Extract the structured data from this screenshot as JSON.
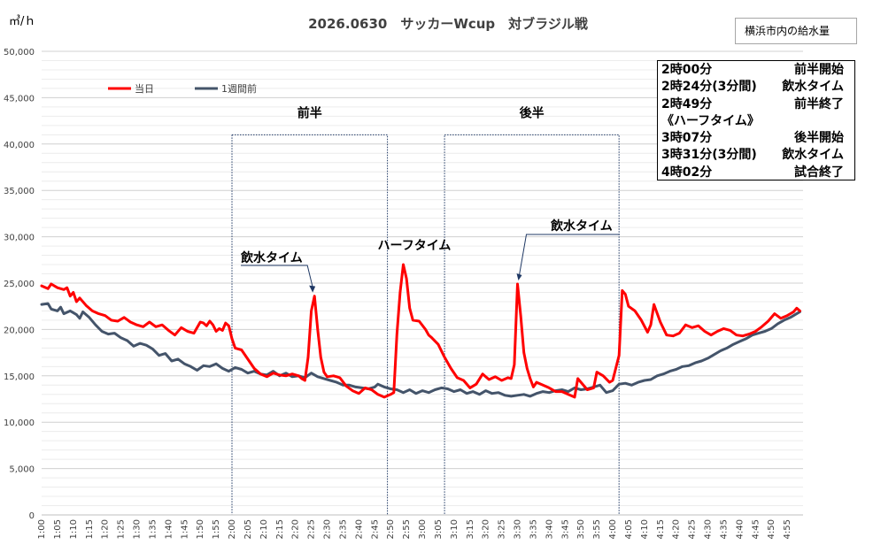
{
  "chart_data": {
    "type": "line",
    "title": "2026.0630　サッカーWcup　対ブラジル戦",
    "ylabel": "㎥/ｈ",
    "ylim": [
      0,
      50000
    ],
    "yticks": [
      "0",
      "5,000",
      "10,000",
      "15,000",
      "20,000",
      "25,000",
      "30,000",
      "35,000",
      "40,000",
      "45,000",
      "50,000"
    ],
    "xticks": [
      "1:00",
      "1:05",
      "1:10",
      "1:15",
      "1:20",
      "1:25",
      "1:30",
      "1:35",
      "1:40",
      "1:45",
      "1:50",
      "1:55",
      "2:00",
      "2:05",
      "2:10",
      "2:15",
      "2:20",
      "2:25",
      "2:30",
      "2:35",
      "2:40",
      "2:45",
      "2:50",
      "2:55",
      "3:00",
      "3:05",
      "3:10",
      "3:15",
      "3:20",
      "3:25",
      "3:30",
      "3:35",
      "3:40",
      "3:45",
      "3:50",
      "3:55",
      "4:00",
      "4:05",
      "4:10",
      "4:15",
      "4:20",
      "4:25",
      "4:30",
      "4:35",
      "4:40",
      "4:45",
      "4:50",
      "4:55"
    ],
    "x_start": "1:00",
    "x_end": "4:59",
    "series": [
      {
        "name": "当日",
        "color": "#ff0000",
        "points": [
          [
            "1:00",
            24700
          ],
          [
            "1:02",
            24400
          ],
          [
            "1:03",
            24900
          ],
          [
            "1:05",
            24500
          ],
          [
            "1:07",
            24300
          ],
          [
            "1:08",
            24500
          ],
          [
            "1:09",
            23600
          ],
          [
            "1:10",
            24000
          ],
          [
            "1:11",
            23000
          ],
          [
            "1:12",
            23400
          ],
          [
            "1:14",
            22600
          ],
          [
            "1:16",
            22000
          ],
          [
            "1:18",
            21700
          ],
          [
            "1:20",
            21500
          ],
          [
            "1:22",
            21000
          ],
          [
            "1:24",
            20900
          ],
          [
            "1:26",
            21300
          ],
          [
            "1:28",
            20800
          ],
          [
            "1:30",
            20500
          ],
          [
            "1:32",
            20300
          ],
          [
            "1:34",
            20800
          ],
          [
            "1:36",
            20300
          ],
          [
            "1:38",
            20500
          ],
          [
            "1:40",
            19900
          ],
          [
            "1:42",
            19400
          ],
          [
            "1:44",
            20200
          ],
          [
            "1:46",
            19800
          ],
          [
            "1:48",
            19600
          ],
          [
            "1:50",
            20800
          ],
          [
            "1:51",
            20700
          ],
          [
            "1:52",
            20400
          ],
          [
            "1:53",
            20900
          ],
          [
            "1:54",
            20500
          ],
          [
            "1:55",
            19800
          ],
          [
            "1:56",
            20100
          ],
          [
            "1:57",
            19900
          ],
          [
            "1:58",
            20700
          ],
          [
            "1:59",
            20400
          ],
          [
            "2:00",
            19000
          ],
          [
            "2:01",
            18000
          ],
          [
            "2:03",
            17800
          ],
          [
            "2:05",
            16800
          ],
          [
            "2:07",
            15800
          ],
          [
            "2:09",
            15200
          ],
          [
            "2:11",
            14900
          ],
          [
            "2:13",
            15300
          ],
          [
            "2:15",
            15100
          ],
          [
            "2:17",
            15000
          ],
          [
            "2:19",
            15200
          ],
          [
            "2:21",
            15000
          ],
          [
            "2:22",
            14700
          ],
          [
            "2:23",
            14500
          ],
          [
            "2:24",
            17000
          ],
          [
            "2:25",
            22000
          ],
          [
            "2:26",
            23600
          ],
          [
            "2:27",
            20000
          ],
          [
            "2:28",
            17000
          ],
          [
            "2:29",
            15400
          ],
          [
            "2:30",
            14900
          ],
          [
            "2:32",
            15000
          ],
          [
            "2:34",
            14800
          ],
          [
            "2:36",
            13900
          ],
          [
            "2:38",
            13400
          ],
          [
            "2:40",
            13100
          ],
          [
            "2:42",
            13700
          ],
          [
            "2:44",
            13500
          ],
          [
            "2:46",
            13000
          ],
          [
            "2:48",
            12700
          ],
          [
            "2:50",
            13000
          ],
          [
            "2:51",
            13200
          ],
          [
            "2:52",
            19500
          ],
          [
            "2:53",
            24000
          ],
          [
            "2:54",
            27000
          ],
          [
            "2:55",
            25500
          ],
          [
            "2:56",
            22300
          ],
          [
            "2:57",
            21000
          ],
          [
            "2:59",
            20900
          ],
          [
            "3:01",
            20000
          ],
          [
            "3:02",
            19400
          ],
          [
            "3:03",
            19100
          ],
          [
            "3:05",
            18400
          ],
          [
            "3:07",
            17000
          ],
          [
            "3:09",
            15800
          ],
          [
            "3:11",
            14800
          ],
          [
            "3:13",
            14500
          ],
          [
            "3:15",
            13700
          ],
          [
            "3:17",
            14100
          ],
          [
            "3:19",
            15200
          ],
          [
            "3:21",
            14600
          ],
          [
            "3:23",
            14900
          ],
          [
            "3:25",
            14500
          ],
          [
            "3:27",
            14800
          ],
          [
            "3:28",
            14700
          ],
          [
            "3:29",
            16200
          ],
          [
            "3:30",
            24900
          ],
          [
            "3:31",
            21500
          ],
          [
            "3:32",
            17500
          ],
          [
            "3:33",
            15800
          ],
          [
            "3:34",
            14700
          ],
          [
            "3:35",
            13800
          ],
          [
            "3:36",
            14300
          ],
          [
            "3:38",
            14000
          ],
          [
            "3:40",
            13700
          ],
          [
            "3:42",
            13300
          ],
          [
            "3:44",
            13300
          ],
          [
            "3:46",
            13000
          ],
          [
            "3:48",
            12700
          ],
          [
            "3:49",
            14700
          ],
          [
            "3:50",
            14300
          ],
          [
            "3:52",
            13500
          ],
          [
            "3:54",
            13700
          ],
          [
            "3:55",
            15400
          ],
          [
            "3:57",
            15000
          ],
          [
            "3:59",
            14300
          ],
          [
            "4:00",
            14500
          ],
          [
            "4:02",
            17200
          ],
          [
            "4:03",
            24200
          ],
          [
            "4:04",
            23800
          ],
          [
            "4:05",
            22500
          ],
          [
            "4:07",
            22000
          ],
          [
            "4:09",
            21000
          ],
          [
            "4:11",
            19700
          ],
          [
            "4:12",
            20500
          ],
          [
            "4:13",
            22700
          ],
          [
            "4:15",
            20800
          ],
          [
            "4:17",
            19400
          ],
          [
            "4:19",
            19300
          ],
          [
            "4:21",
            19600
          ],
          [
            "4:23",
            20500
          ],
          [
            "4:25",
            20200
          ],
          [
            "4:27",
            20400
          ],
          [
            "4:29",
            19800
          ],
          [
            "4:31",
            19400
          ],
          [
            "4:33",
            19800
          ],
          [
            "4:35",
            20100
          ],
          [
            "4:37",
            19900
          ],
          [
            "4:39",
            19400
          ],
          [
            "4:41",
            19300
          ],
          [
            "4:43",
            19500
          ],
          [
            "4:45",
            19800
          ],
          [
            "4:47",
            20300
          ],
          [
            "4:49",
            20900
          ],
          [
            "4:51",
            21700
          ],
          [
            "4:53",
            21200
          ],
          [
            "4:55",
            21500
          ],
          [
            "4:57",
            21900
          ],
          [
            "4:58",
            22300
          ],
          [
            "4:59",
            22000
          ]
        ]
      },
      {
        "name": "1週間前",
        "color": "#44546a",
        "points": [
          [
            "1:00",
            22700
          ],
          [
            "1:02",
            22800
          ],
          [
            "1:03",
            22200
          ],
          [
            "1:05",
            22000
          ],
          [
            "1:06",
            22400
          ],
          [
            "1:07",
            21700
          ],
          [
            "1:09",
            22000
          ],
          [
            "1:11",
            21600
          ],
          [
            "1:12",
            21200
          ],
          [
            "1:13",
            21900
          ],
          [
            "1:15",
            21300
          ],
          [
            "1:17",
            20500
          ],
          [
            "1:19",
            19800
          ],
          [
            "1:21",
            19500
          ],
          [
            "1:23",
            19600
          ],
          [
            "1:25",
            19100
          ],
          [
            "1:27",
            18800
          ],
          [
            "1:29",
            18200
          ],
          [
            "1:31",
            18500
          ],
          [
            "1:33",
            18300
          ],
          [
            "1:35",
            17900
          ],
          [
            "1:37",
            17200
          ],
          [
            "1:39",
            17400
          ],
          [
            "1:41",
            16600
          ],
          [
            "1:43",
            16800
          ],
          [
            "1:45",
            16300
          ],
          [
            "1:47",
            16000
          ],
          [
            "1:49",
            15600
          ],
          [
            "1:51",
            16100
          ],
          [
            "1:53",
            16000
          ],
          [
            "1:55",
            16300
          ],
          [
            "1:57",
            15800
          ],
          [
            "1:59",
            15500
          ],
          [
            "2:01",
            15900
          ],
          [
            "2:03",
            15700
          ],
          [
            "2:05",
            15300
          ],
          [
            "2:07",
            15500
          ],
          [
            "2:09",
            15200
          ],
          [
            "2:11",
            15100
          ],
          [
            "2:13",
            15500
          ],
          [
            "2:15",
            15000
          ],
          [
            "2:17",
            15300
          ],
          [
            "2:19",
            14900
          ],
          [
            "2:21",
            15000
          ],
          [
            "2:23",
            14800
          ],
          [
            "2:25",
            15300
          ],
          [
            "2:27",
            14900
          ],
          [
            "2:29",
            14700
          ],
          [
            "2:31",
            14500
          ],
          [
            "2:33",
            14300
          ],
          [
            "2:35",
            14000
          ],
          [
            "2:37",
            14000
          ],
          [
            "2:39",
            13800
          ],
          [
            "2:41",
            13700
          ],
          [
            "2:43",
            13600
          ],
          [
            "2:45",
            13800
          ],
          [
            "2:46",
            14100
          ],
          [
            "2:48",
            13800
          ],
          [
            "2:50",
            13600
          ],
          [
            "2:52",
            13500
          ],
          [
            "2:54",
            13200
          ],
          [
            "2:56",
            13500
          ],
          [
            "2:58",
            13100
          ],
          [
            "3:00",
            13400
          ],
          [
            "3:02",
            13200
          ],
          [
            "3:04",
            13500
          ],
          [
            "3:06",
            13700
          ],
          [
            "3:08",
            13600
          ],
          [
            "3:10",
            13300
          ],
          [
            "3:12",
            13500
          ],
          [
            "3:14",
            13100
          ],
          [
            "3:16",
            13300
          ],
          [
            "3:18",
            13000
          ],
          [
            "3:20",
            13400
          ],
          [
            "3:22",
            13100
          ],
          [
            "3:24",
            13200
          ],
          [
            "3:26",
            12900
          ],
          [
            "3:28",
            12800
          ],
          [
            "3:30",
            12900
          ],
          [
            "3:32",
            13000
          ],
          [
            "3:34",
            12800
          ],
          [
            "3:36",
            13100
          ],
          [
            "3:38",
            13300
          ],
          [
            "3:40",
            13200
          ],
          [
            "3:42",
            13400
          ],
          [
            "3:44",
            13500
          ],
          [
            "3:46",
            13300
          ],
          [
            "3:48",
            13700
          ],
          [
            "3:50",
            13500
          ],
          [
            "3:52",
            13600
          ],
          [
            "3:54",
            13800
          ],
          [
            "3:56",
            14000
          ],
          [
            "3:58",
            13200
          ],
          [
            "4:00",
            13400
          ],
          [
            "4:02",
            14100
          ],
          [
            "4:04",
            14200
          ],
          [
            "4:06",
            14000
          ],
          [
            "4:08",
            14300
          ],
          [
            "4:10",
            14500
          ],
          [
            "4:12",
            14600
          ],
          [
            "4:14",
            15000
          ],
          [
            "4:16",
            15200
          ],
          [
            "4:18",
            15500
          ],
          [
            "4:20",
            15700
          ],
          [
            "4:22",
            16000
          ],
          [
            "4:24",
            16100
          ],
          [
            "4:26",
            16400
          ],
          [
            "4:28",
            16600
          ],
          [
            "4:30",
            16900
          ],
          [
            "4:32",
            17300
          ],
          [
            "4:34",
            17700
          ],
          [
            "4:36",
            18000
          ],
          [
            "4:38",
            18400
          ],
          [
            "4:40",
            18700
          ],
          [
            "4:42",
            19000
          ],
          [
            "4:44",
            19400
          ],
          [
            "4:46",
            19600
          ],
          [
            "4:48",
            19800
          ],
          [
            "4:50",
            20100
          ],
          [
            "4:52",
            20600
          ],
          [
            "4:54",
            21000
          ],
          [
            "4:56",
            21300
          ],
          [
            "4:58",
            21700
          ],
          [
            "4:59",
            21900
          ]
        ]
      }
    ],
    "regions": [
      {
        "label": "前半",
        "x_from": "2:00",
        "x_to": "2:49",
        "y_top": 41000
      },
      {
        "label": "後半",
        "x_from": "3:07",
        "x_to": "4:02",
        "y_top": 41000
      }
    ],
    "annotations": [
      {
        "text": "飲水タイム",
        "x": "2:26",
        "y": 23600
      },
      {
        "text": "ハーフタイム",
        "x": "2:54",
        "y": 27000
      },
      {
        "text": "飲水タイム",
        "x": "3:30",
        "y": 24900
      }
    ],
    "legend_position": "top-left",
    "grid": true
  },
  "info_box": {
    "rows": [
      {
        "time": "2時00分",
        "event": "前半開始"
      },
      {
        "time": "2時24分(3分間)",
        "event": "飲水タイム"
      },
      {
        "time": "2時49分",
        "event": "前半終了"
      },
      {
        "time": "《ハーフタイム》",
        "event": ""
      },
      {
        "time": "3時07分",
        "event": "後半開始"
      },
      {
        "time": "3時31分(3分間)",
        "event": "飲水タイム"
      },
      {
        "time": "4時02分",
        "event": "試合終了"
      }
    ]
  },
  "corner_label": "横浜市内の給水量",
  "colors": {
    "today": "#ff0000",
    "week_before": "#44546a",
    "grid": "#d9d9d9",
    "box": "#1f3864"
  }
}
